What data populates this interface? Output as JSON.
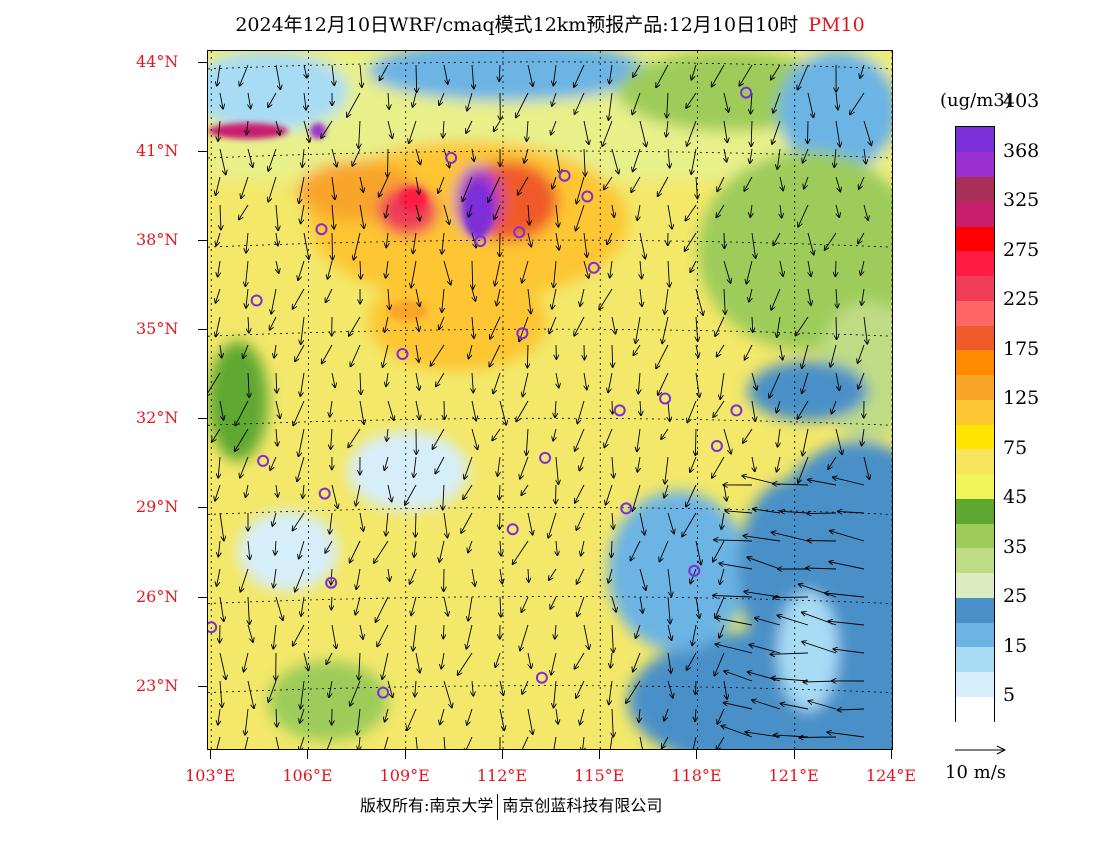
{
  "title": {
    "main": "2024年12月10日WRF/cmaq模式12km预报产品:12月10日10时",
    "pollutant": "PM10",
    "pollutant_color": "#e8141c"
  },
  "map": {
    "lat_labels": [
      "44°N",
      "41°N",
      "38°N",
      "35°N",
      "32°N",
      "29°N",
      "26°N",
      "23°N"
    ],
    "lon_labels": [
      "103°E",
      "106°E",
      "109°E",
      "112°E",
      "115°E",
      "118°E",
      "121°E",
      "124°E"
    ],
    "lat_values": [
      44,
      41,
      38,
      35,
      32,
      29,
      26,
      23
    ],
    "lon_values": [
      103,
      106,
      109,
      112,
      115,
      118,
      121,
      124
    ],
    "lat_range": [
      20.9,
      44.4
    ],
    "lon_range": [
      102.9,
      124.0
    ],
    "axis_label_color": "#e8141c",
    "station_marker_color": "#7b2fd8",
    "stations": [
      {
        "lon": 119.5,
        "lat": 43.0
      },
      {
        "lon": 110.4,
        "lat": 40.8
      },
      {
        "lon": 113.9,
        "lat": 40.2
      },
      {
        "lon": 114.6,
        "lat": 39.5
      },
      {
        "lon": 106.4,
        "lat": 38.4
      },
      {
        "lon": 112.5,
        "lat": 38.3
      },
      {
        "lon": 111.3,
        "lat": 38.0
      },
      {
        "lon": 114.8,
        "lat": 37.1
      },
      {
        "lon": 104.4,
        "lat": 36.0
      },
      {
        "lon": 112.6,
        "lat": 34.9
      },
      {
        "lon": 108.9,
        "lat": 34.2
      },
      {
        "lon": 117.0,
        "lat": 32.7
      },
      {
        "lon": 115.6,
        "lat": 32.3
      },
      {
        "lon": 119.2,
        "lat": 32.3
      },
      {
        "lon": 118.6,
        "lat": 31.1
      },
      {
        "lon": 104.6,
        "lat": 30.6
      },
      {
        "lon": 113.3,
        "lat": 30.7
      },
      {
        "lon": 106.5,
        "lat": 29.5
      },
      {
        "lon": 115.8,
        "lat": 29.0
      },
      {
        "lon": 112.3,
        "lat": 28.3
      },
      {
        "lon": 117.9,
        "lat": 26.9
      },
      {
        "lon": 106.7,
        "lat": 26.5
      },
      {
        "lon": 103.0,
        "lat": 25.0
      },
      {
        "lon": 108.3,
        "lat": 22.8
      },
      {
        "lon": 113.2,
        "lat": 23.3
      }
    ]
  },
  "legend": {
    "unit": "(ug/m3)",
    "colors": [
      "#ffffff",
      "#d6eefa",
      "#a8dcf5",
      "#6cb4e4",
      "#4a90c8",
      "#dcebc0",
      "#bfdc85",
      "#9dcc5a",
      "#5ea832",
      "#f2f55a",
      "#f8e35c",
      "#ffe600",
      "#fdc633",
      "#f9a529",
      "#ff8a00",
      "#f05a2a",
      "#ff6666",
      "#f03c56",
      "#ff1c44",
      "#ff0000",
      "#c81e70",
      "#a83058",
      "#9a30d0",
      "#7b2fd8"
    ],
    "labels": [
      "5",
      "15",
      "25",
      "35",
      "45",
      "75",
      "125",
      "175",
      "225",
      "275",
      "325",
      "368",
      "403"
    ]
  },
  "wind_reference": {
    "label": "10 m/s"
  },
  "footer": {
    "left": "版权所有:南京大学",
    "right": "南京创蓝科技有限公司"
  }
}
